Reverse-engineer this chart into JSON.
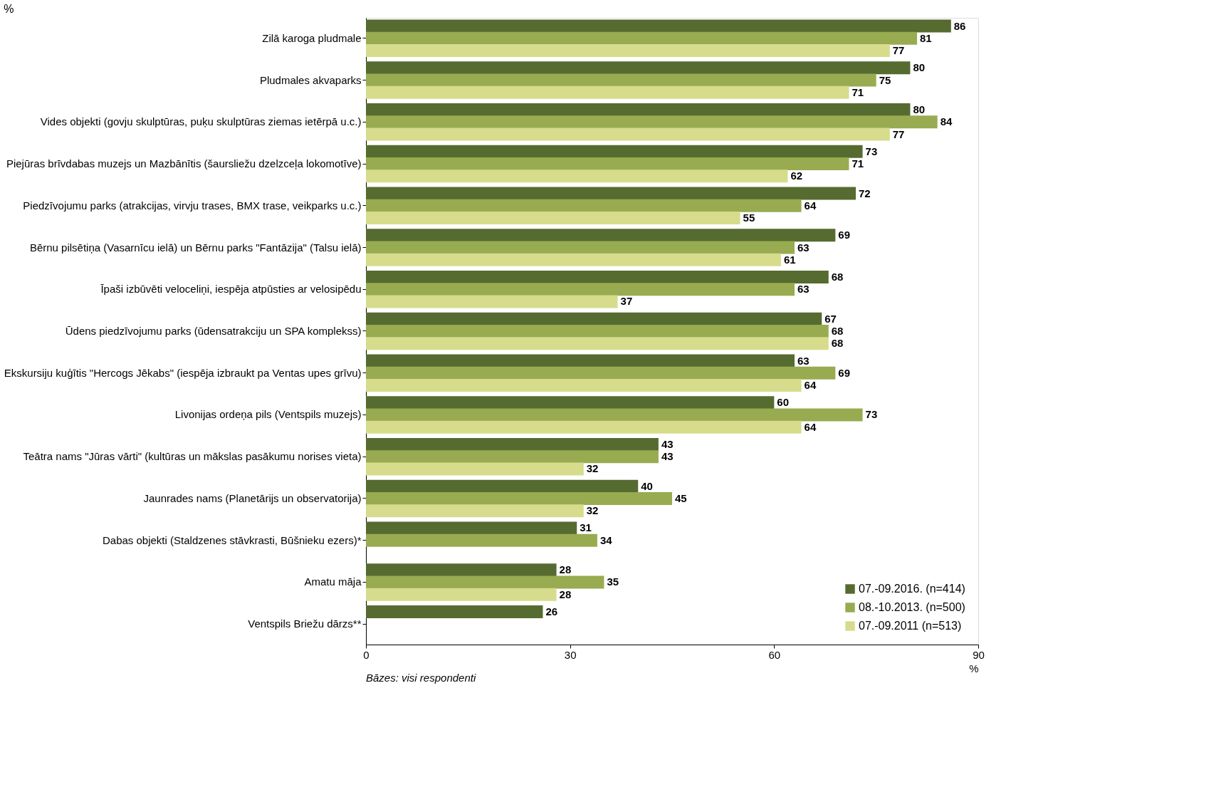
{
  "chart_data": {
    "type": "bar",
    "orientation": "horizontal",
    "categories": [
      "Zilā karoga pludmale",
      "Pludmales akvaparks",
      "Vides objekti (govju skulptūras, puķu skulptūras ziemas ietērpā u.c.)",
      "Piejūras brīvdabas muzejs un Mazbānītis (šaursliežu dzelzceļa lokomotīve)",
      "Piedzīvojumu parks (atrakcijas, virvju trases, BMX trase, veikparks u.c.)",
      "Bērnu pilsētiņa (Vasarnīcu ielā) un Bērnu parks \"Fantāzija\" (Talsu ielā)",
      "Īpaši izbūvēti veloceliņi, iespēja atpūsties ar velosipēdu",
      "Ūdens piedzīvojumu parks (ūdensatrakciju un SPA komplekss)",
      "Ekskursiju kuģītis \"Hercogs Jēkabs\" (iespēja izbraukt pa Ventas upes grīvu)",
      "Livonijas ordeņa pils (Ventspils muzejs)",
      "Teātra nams \"Jūras vārti\" (kultūras un mākslas pasākumu norises vieta)",
      "Jaunrades nams (Planetārijs un observatorija)",
      "Dabas objekti (Staldzenes stāvkrasti, Būšnieku ezers)*",
      "Amatu māja",
      "Ventspils Briežu dārzs**"
    ],
    "series": [
      {
        "name": "07.-09.2016. (n=414)",
        "color": "#566b30",
        "values": [
          86,
          80,
          80,
          73,
          72,
          69,
          68,
          67,
          63,
          60,
          43,
          40,
          31,
          28,
          26
        ]
      },
      {
        "name": "08.-10.2013. (n=500)",
        "color": "#98ab50",
        "values": [
          81,
          75,
          84,
          71,
          64,
          63,
          63,
          68,
          69,
          73,
          43,
          45,
          34,
          35,
          null
        ]
      },
      {
        "name": "07.-09.2011 (n=513)",
        "color": "#d6dc8c",
        "values": [
          77,
          71,
          77,
          62,
          55,
          61,
          37,
          68,
          64,
          64,
          32,
          32,
          null,
          28,
          null
        ]
      }
    ],
    "xlim": [
      0,
      90
    ],
    "xticks": [
      0,
      30,
      60,
      90
    ],
    "xlabel": "%",
    "data_labels": true,
    "legend": "bottom right",
    "grid": false,
    "annotations": [
      "%",
      "Bāzes: visi respondenti"
    ]
  }
}
